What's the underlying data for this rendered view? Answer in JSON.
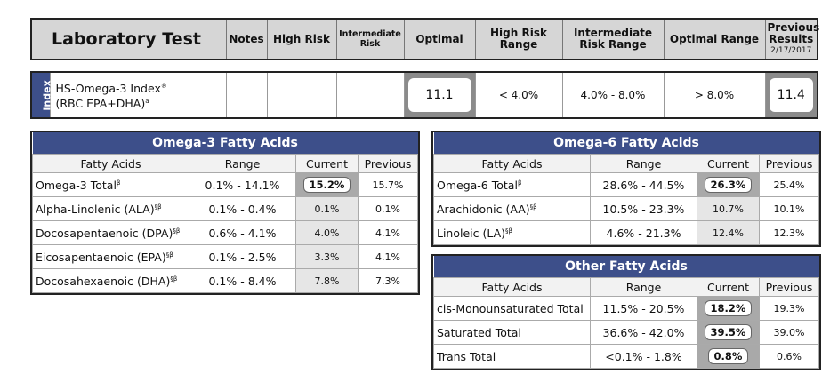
{
  "header": {
    "title": "Laboratory Test",
    "notes": "Notes",
    "high_risk": "High Risk",
    "intermediate_risk": "Intermediate Risk",
    "optimal": "Optimal",
    "high_risk_range": "High Risk Range",
    "intermediate_risk_range": "Intermediate Risk Range",
    "optimal_range": "Optimal Range",
    "previous_results": "Previous Results",
    "previous_date": "2/17/2017"
  },
  "index_row": {
    "tag": "Index",
    "name_line1": "HS-Omega-3 Index",
    "name_line1_mark": "®",
    "name_line2": "(RBC EPA+DHA)",
    "name_line2_mark": "a",
    "current": "11.1",
    "high_risk_range": "< 4.0%",
    "intermediate_risk_range": "4.0% - 8.0%",
    "optimal_range": "> 8.0%",
    "previous": "11.4"
  },
  "omega3": {
    "title": "Omega-3 Fatty Acids",
    "col_fatty": "Fatty Acids",
    "col_range": "Range",
    "col_current": "Current",
    "col_previous": "Previous",
    "rows": [
      {
        "name": "Omega-3 Total",
        "mark": "β",
        "range": "0.1% - 14.1%",
        "current": "15.2%",
        "previous": "15.7%"
      },
      {
        "name": "Alpha-Linolenic (ALA)",
        "mark": "§β",
        "range": "0.1% - 0.4%",
        "current": "0.1%",
        "previous": "0.1%"
      },
      {
        "name": "Docosapentaenoic (DPA)",
        "mark": "§β",
        "range": "0.6% - 4.1%",
        "current": "4.0%",
        "previous": "4.1%"
      },
      {
        "name": "Eicosapentaenoic (EPA)",
        "mark": "§β",
        "range": "0.1% - 2.5%",
        "current": "3.3%",
        "previous": "4.1%"
      },
      {
        "name": "Docosahexaenoic (DHA)",
        "mark": "§β",
        "range": "0.1% - 8.4%",
        "current": "7.8%",
        "previous": "7.3%"
      }
    ]
  },
  "omega6": {
    "title": "Omega-6 Fatty Acids",
    "col_fatty": "Fatty Acids",
    "col_range": "Range",
    "col_current": "Current",
    "col_previous": "Previous",
    "rows": [
      {
        "name": "Omega-6 Total",
        "mark": "β",
        "range": "28.6% - 44.5%",
        "current": "26.3%",
        "previous": "25.4%"
      },
      {
        "name": "Arachidonic (AA)",
        "mark": "§β",
        "range": "10.5% - 23.3%",
        "current": "10.7%",
        "previous": "10.1%"
      },
      {
        "name": "Linoleic (LA)",
        "mark": "§β",
        "range": "4.6% - 21.3%",
        "current": "12.4%",
        "previous": "12.3%"
      }
    ]
  },
  "other": {
    "title": "Other Fatty Acids",
    "col_fatty": "Fatty Acids",
    "col_range": "Range",
    "col_current": "Current",
    "col_previous": "Previous",
    "rows": [
      {
        "name": "cis-Monounsaturated Total",
        "range": "11.5% - 20.5%",
        "current": "18.2%",
        "previous": "19.3%"
      },
      {
        "name": "Saturated Total",
        "range": "36.6% - 42.0%",
        "current": "39.5%",
        "previous": "39.0%"
      },
      {
        "name": "Trans Total",
        "range": "<0.1% - 1.8%",
        "current": "0.8%",
        "previous": "0.6%"
      }
    ]
  },
  "colors": {
    "header_bg": "#d6d6d6",
    "title_bar": "#3d4f8a",
    "highlight": "#a9a9a9"
  }
}
